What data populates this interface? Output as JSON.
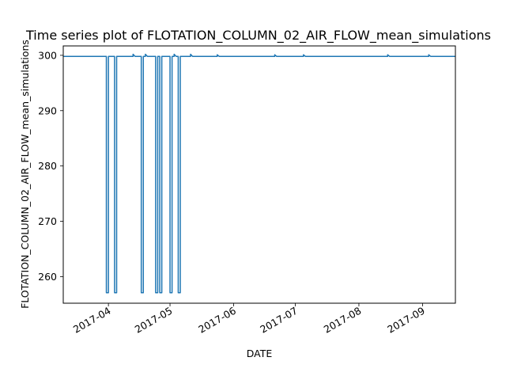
{
  "chart_data": {
    "type": "line",
    "title": "Time series plot of FLOTATION_COLUMN_02_AIR_FLOW_mean_simulations",
    "xlabel": "DATE",
    "ylabel": "FLOTATION_COLUMN_02_AIR_FLOW_mean_simulations",
    "x_type": "date",
    "xlim": [
      "2017-03-10",
      "2017-09-17"
    ],
    "ylim": [
      255.2,
      301.7
    ],
    "x_ticks": [
      "2017-04",
      "2017-05",
      "2017-06",
      "2017-07",
      "2017-08",
      "2017-09"
    ],
    "y_ticks": [
      260,
      270,
      280,
      290,
      300
    ],
    "grid": false,
    "series": [
      {
        "color": "#1f77b4",
        "points": [
          [
            "2017-03-10",
            299.8
          ],
          [
            "2017-03-31",
            299.8
          ],
          [
            "2017-03-31",
            257.1
          ],
          [
            "2017-04-01",
            257.1
          ],
          [
            "2017-04-01",
            299.8
          ],
          [
            "2017-04-04",
            299.8
          ],
          [
            "2017-04-04",
            257.1
          ],
          [
            "2017-04-05",
            257.1
          ],
          [
            "2017-04-05",
            299.8
          ],
          [
            "2017-04-13",
            299.8
          ],
          [
            "2017-04-13",
            300.2
          ],
          [
            "2017-04-14",
            299.8
          ],
          [
            "2017-04-17",
            299.8
          ],
          [
            "2017-04-17",
            257.1
          ],
          [
            "2017-04-18",
            257.1
          ],
          [
            "2017-04-18",
            299.8
          ],
          [
            "2017-04-19",
            299.8
          ],
          [
            "2017-04-19",
            300.2
          ],
          [
            "2017-04-20",
            299.8
          ],
          [
            "2017-04-24",
            299.8
          ],
          [
            "2017-04-24",
            257.1
          ],
          [
            "2017-04-25",
            257.1
          ],
          [
            "2017-04-25",
            299.8
          ],
          [
            "2017-04-26",
            299.8
          ],
          [
            "2017-04-26",
            257.1
          ],
          [
            "2017-04-27",
            257.1
          ],
          [
            "2017-04-27",
            299.8
          ],
          [
            "2017-05-01",
            299.8
          ],
          [
            "2017-05-01",
            257.1
          ],
          [
            "2017-05-02",
            257.1
          ],
          [
            "2017-05-02",
            299.8
          ],
          [
            "2017-05-03",
            299.8
          ],
          [
            "2017-05-03",
            300.2
          ],
          [
            "2017-05-04",
            299.8
          ],
          [
            "2017-05-05",
            299.8
          ],
          [
            "2017-05-05",
            257.1
          ],
          [
            "2017-05-06",
            257.1
          ],
          [
            "2017-05-06",
            299.8
          ],
          [
            "2017-05-11",
            299.8
          ],
          [
            "2017-05-11",
            300.2
          ],
          [
            "2017-05-12",
            299.8
          ],
          [
            "2017-05-24",
            299.8
          ],
          [
            "2017-05-24",
            300.1
          ],
          [
            "2017-05-25",
            299.8
          ],
          [
            "2017-06-21",
            299.8
          ],
          [
            "2017-06-21",
            300.1
          ],
          [
            "2017-06-22",
            299.8
          ],
          [
            "2017-07-05",
            299.8
          ],
          [
            "2017-07-05",
            300.1
          ],
          [
            "2017-07-06",
            299.8
          ],
          [
            "2017-08-15",
            299.8
          ],
          [
            "2017-08-15",
            300.1
          ],
          [
            "2017-08-16",
            299.8
          ],
          [
            "2017-09-04",
            299.8
          ],
          [
            "2017-09-04",
            300.1
          ],
          [
            "2017-09-05",
            299.8
          ],
          [
            "2017-09-17",
            299.8
          ]
        ]
      }
    ]
  }
}
